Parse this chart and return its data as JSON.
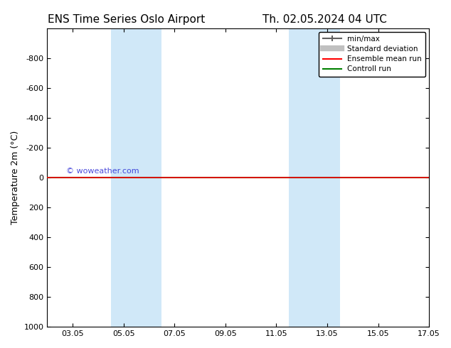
{
  "title_left": "ENS Time Series Oslo Airport",
  "title_right": "Th. 02.05.2024 04 UTC",
  "ylabel": "Temperature 2m (°C)",
  "watermark": "© woweather.com",
  "xlim": [
    0,
    15
  ],
  "ylim": [
    1000,
    -1000
  ],
  "yticks": [
    -800,
    -600,
    -400,
    -200,
    0,
    200,
    400,
    600,
    800,
    1000
  ],
  "xtick_labels": [
    "03.05",
    "05.05",
    "07.05",
    "09.05",
    "11.05",
    "13.05",
    "15.05",
    "17.05"
  ],
  "xtick_positions": [
    1,
    3,
    5,
    7,
    9,
    11,
    13,
    15
  ],
  "shaded_bands": [
    {
      "xmin": 2.5,
      "xmax": 4.5
    },
    {
      "xmin": 9.5,
      "xmax": 11.5
    }
  ],
  "band_color": "#d0e8f8",
  "green_line_y": 0,
  "red_line_y": 0,
  "line_color_green": "#008000",
  "line_color_red": "#ff0000",
  "legend_entries": [
    "min/max",
    "Standard deviation",
    "Ensemble mean run",
    "Controll run"
  ],
  "legend_colors": [
    "#808080",
    "#c0c0c0",
    "#ff0000",
    "#008000"
  ],
  "background_color": "#ffffff",
  "plot_bg_color": "#ffffff",
  "title_fontsize": 11,
  "axis_fontsize": 9,
  "tick_fontsize": 8
}
